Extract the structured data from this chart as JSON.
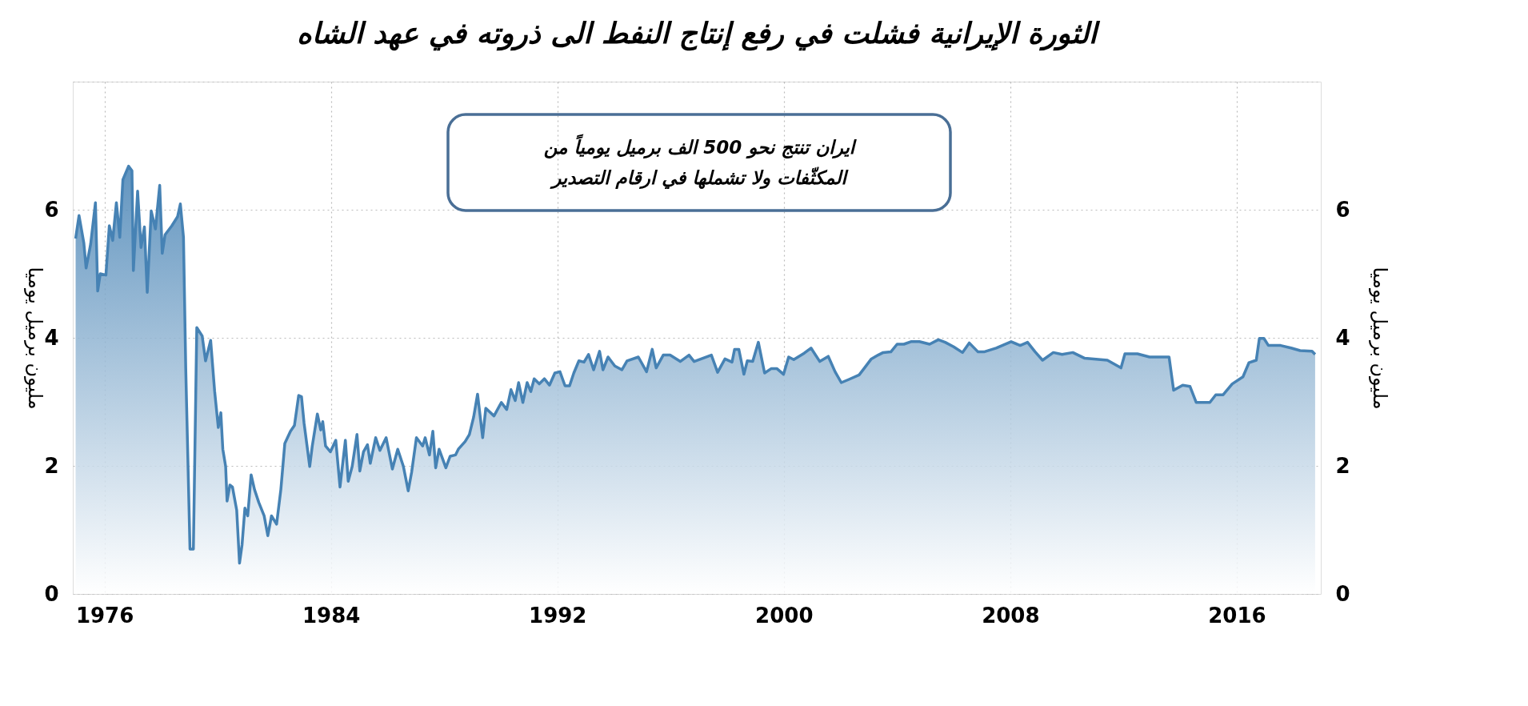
{
  "chart_data": {
    "type": "area",
    "title": "الثورة الإيرانية فشلت في رفع إنتاج النفط الى ذروته في عهد الشاه",
    "ylabel": "مليون برميل يوميا",
    "y2label": "مليون برميل يوميا",
    "annotations": [
      "ايران تنتج نحو 500 الف برميل يومياً من\nالمكثّفات ولا تشملها في ارقام التصدير"
    ],
    "x": [
      1974.98,
      1975.1,
      1975.27,
      1975.35,
      1975.51,
      1975.68,
      1975.76,
      1975.85,
      1976.05,
      1976.17,
      1976.29,
      1976.42,
      1976.54,
      1976.65,
      1976.85,
      1976.97,
      1977.02,
      1977.17,
      1977.29,
      1977.41,
      1977.51,
      1977.65,
      1977.8,
      1977.95,
      1978.04,
      1978.14,
      1978.38,
      1978.58,
      1978.68,
      1978.79,
      1978.87,
      1979.02,
      1979.14,
      1979.26,
      1979.45,
      1979.57,
      1979.75,
      1979.89,
      1980.02,
      1980.11,
      1980.18,
      1980.28,
      1980.33,
      1980.43,
      1980.52,
      1980.67,
      1980.77,
      1980.86,
      1980.96,
      1981.06,
      1981.18,
      1981.3,
      1981.45,
      1981.64,
      1981.77,
      1981.9,
      1982.08,
      1982.23,
      1982.37,
      1982.57,
      1982.71,
      1982.86,
      1982.96,
      1983.05,
      1983.25,
      1983.34,
      1983.52,
      1983.64,
      1983.71,
      1983.81,
      1983.98,
      1984.17,
      1984.32,
      1984.51,
      1984.61,
      1984.75,
      1984.92,
      1985.02,
      1985.15,
      1985.29,
      1985.39,
      1985.58,
      1985.73,
      1985.95,
      1986.17,
      1986.36,
      1986.56,
      1986.73,
      1986.85,
      1987.02,
      1987.24,
      1987.33,
      1987.48,
      1987.6,
      1987.7,
      1987.82,
      1988.06,
      1988.21,
      1988.4,
      1988.5,
      1988.74,
      1988.89,
      1989.04,
      1989.18,
      1989.36,
      1989.47,
      1989.76,
      1990.02,
      1990.21,
      1990.36,
      1990.51,
      1990.63,
      1990.78,
      1990.93,
      1991.06,
      1991.18,
      1991.36,
      1991.54,
      1991.72,
      1991.91,
      1992.09,
      1992.27,
      1992.43,
      1992.58,
      1992.76,
      1992.94,
      1993.1,
      1993.28,
      1993.49,
      1993.61,
      1993.79,
      1994.03,
      1994.28,
      1994.46,
      1994.86,
      1995.15,
      1995.35,
      1995.49,
      1995.74,
      1995.98,
      1996.34,
      1996.65,
      1996.83,
      1997.44,
      1997.66,
      1997.92,
      1998.17,
      1998.26,
      1998.41,
      1998.59,
      1998.71,
      1998.9,
      1999.1,
      1999.32,
      1999.56,
      1999.75,
      1999.99,
      2000.17,
      2000.35,
      2000.72,
      2000.96,
      2001.27,
      2001.57,
      2001.81,
      2002.03,
      2002.3,
      2002.66,
      2002.85,
      2003.09,
      2003.33,
      2003.51,
      2003.78,
      2004.0,
      2004.24,
      2004.49,
      2004.79,
      2005.15,
      2005.46,
      2005.7,
      2006.0,
      2006.31,
      2006.55,
      2006.86,
      2007.07,
      2007.5,
      2008.03,
      2008.35,
      2008.61,
      2008.88,
      2009.14,
      2009.52,
      2009.83,
      2010.21,
      2010.63,
      2011.43,
      2011.91,
      2012.05,
      2012.49,
      2012.92,
      2013.61,
      2013.77,
      2014.09,
      2014.35,
      2014.57,
      2015.05,
      2015.26,
      2015.52,
      2015.84,
      2016.22,
      2016.43,
      2016.69,
      2016.8,
      2016.96,
      2017.12,
      2017.55,
      2017.92,
      2018.24,
      2018.66,
      2018.77
    ],
    "series": [
      {
        "color": "#4682b4",
        "values": [
          5.55,
          5.91,
          5.48,
          5.09,
          5.46,
          6.11,
          4.73,
          5.0,
          4.98,
          5.75,
          5.52,
          6.11,
          5.57,
          6.47,
          6.68,
          6.61,
          5.05,
          6.29,
          5.41,
          5.73,
          4.71,
          5.98,
          5.7,
          6.38,
          5.32,
          5.61,
          5.75,
          5.89,
          6.09,
          5.57,
          3.53,
          0.7,
          0.7,
          4.16,
          4.03,
          3.64,
          3.96,
          3.17,
          2.6,
          2.83,
          2.26,
          1.99,
          1.45,
          1.7,
          1.67,
          1.31,
          0.48,
          0.77,
          1.34,
          1.22,
          1.86,
          1.63,
          1.43,
          1.22,
          0.91,
          1.22,
          1.09,
          1.63,
          2.35,
          2.54,
          2.63,
          3.1,
          3.08,
          2.67,
          1.99,
          2.31,
          2.81,
          2.56,
          2.69,
          2.31,
          2.22,
          2.4,
          1.67,
          2.4,
          1.76,
          1.99,
          2.49,
          1.92,
          2.22,
          2.33,
          2.04,
          2.44,
          2.24,
          2.44,
          1.95,
          2.26,
          1.99,
          1.61,
          1.9,
          2.44,
          2.31,
          2.44,
          2.17,
          2.54,
          1.97,
          2.26,
          1.97,
          2.15,
          2.17,
          2.26,
          2.38,
          2.49,
          2.76,
          3.12,
          2.44,
          2.9,
          2.78,
          2.99,
          2.88,
          3.19,
          3.02,
          3.3,
          2.99,
          3.3,
          3.16,
          3.36,
          3.28,
          3.36,
          3.26,
          3.45,
          3.47,
          3.25,
          3.25,
          3.45,
          3.64,
          3.62,
          3.74,
          3.5,
          3.79,
          3.5,
          3.7,
          3.56,
          3.5,
          3.64,
          3.7,
          3.47,
          3.82,
          3.53,
          3.73,
          3.73,
          3.63,
          3.73,
          3.63,
          3.73,
          3.46,
          3.67,
          3.62,
          3.82,
          3.82,
          3.43,
          3.64,
          3.63,
          3.93,
          3.45,
          3.52,
          3.52,
          3.43,
          3.7,
          3.66,
          3.76,
          3.84,
          3.63,
          3.71,
          3.47,
          3.3,
          3.35,
          3.42,
          3.53,
          3.67,
          3.73,
          3.77,
          3.78,
          3.9,
          3.9,
          3.94,
          3.94,
          3.9,
          3.97,
          3.93,
          3.86,
          3.77,
          3.92,
          3.78,
          3.78,
          3.84,
          3.94,
          3.88,
          3.93,
          3.78,
          3.65,
          3.77,
          3.74,
          3.77,
          3.68,
          3.65,
          3.53,
          3.75,
          3.75,
          3.7,
          3.7,
          3.18,
          3.26,
          3.24,
          2.99,
          2.99,
          3.11,
          3.11,
          3.28,
          3.39,
          3.61,
          3.65,
          3.99,
          3.99,
          3.88,
          3.88,
          3.84,
          3.8,
          3.79,
          3.74
        ]
      }
    ],
    "xlim": [
      1974.88,
      2018.97
    ],
    "xticks": [
      1976,
      1984,
      1992,
      2000,
      2008,
      2016
    ],
    "ylim": [
      0,
      8
    ],
    "yticks": [
      0,
      2,
      4,
      6,
      {
        "value": 8,
        "label": null
      }
    ],
    "y2lim": [
      0,
      8
    ],
    "y2ticks": [
      0,
      2,
      4,
      6,
      {
        "value": 8,
        "label": null
      }
    ],
    "grid": true,
    "marker": "none",
    "line_style": "solid"
  }
}
